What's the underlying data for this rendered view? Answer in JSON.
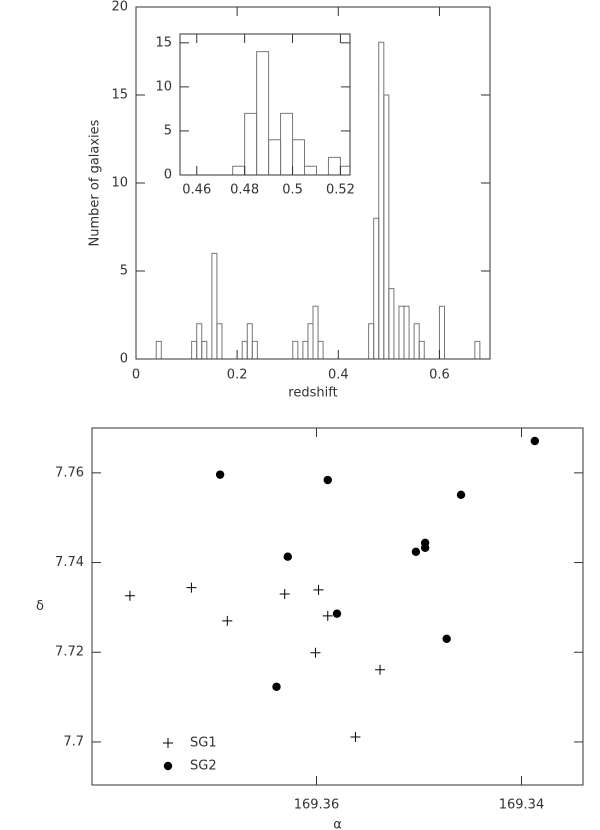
{
  "chart_data": [
    {
      "type": "histogram",
      "xlabel": "redshift",
      "ylabel": "Number of galaxies",
      "bins": [
        0,
        0.01,
        0.02,
        0.03,
        0.04,
        0.05,
        0.06,
        0.07,
        0.08,
        0.09,
        0.1,
        0.11,
        0.12,
        0.13,
        0.14,
        0.15,
        0.16,
        0.17,
        0.18,
        0.19,
        0.2,
        0.21,
        0.22,
        0.23,
        0.24,
        0.25,
        0.26,
        0.27,
        0.28,
        0.29,
        0.3,
        0.31,
        0.32,
        0.33,
        0.34,
        0.35,
        0.36,
        0.37,
        0.38,
        0.39,
        0.4,
        0.41,
        0.42,
        0.43,
        0.44,
        0.45,
        0.46,
        0.47,
        0.48,
        0.49,
        0.5,
        0.51,
        0.52,
        0.53,
        0.54,
        0.55,
        0.56,
        0.57,
        0.58,
        0.59,
        0.6,
        0.61,
        0.62,
        0.63,
        0.64,
        0.65,
        0.66,
        0.67,
        0.68,
        0.69,
        0.7
      ],
      "values": [
        0,
        0,
        0,
        0,
        1,
        0,
        0,
        0,
        0,
        0,
        0,
        1,
        2,
        1,
        0,
        6,
        2,
        0,
        0,
        0,
        0,
        1,
        2,
        1,
        0,
        0,
        0,
        0,
        0,
        0,
        0,
        1,
        0,
        1,
        2,
        3,
        1,
        0,
        0,
        0,
        0,
        0,
        0,
        0,
        0,
        0,
        2,
        8,
        18,
        15,
        4,
        0,
        3,
        3,
        0,
        2,
        1,
        0,
        0,
        0,
        3,
        0,
        0,
        0,
        0,
        0,
        0,
        1,
        0,
        0
      ],
      "color": "#777777",
      "xlim": [
        0,
        0.7
      ],
      "ylim": [
        0,
        20
      ],
      "xticks": [
        0,
        0.2,
        0.4,
        0.6
      ],
      "yticks": [
        0,
        5,
        10,
        15,
        20
      ]
    },
    {
      "type": "histogram",
      "bins": [
        0.455,
        0.46,
        0.465,
        0.47,
        0.475,
        0.48,
        0.485,
        0.49,
        0.495,
        0.5,
        0.505,
        0.51,
        0.515,
        0.52,
        0.525
      ],
      "values": [
        0,
        0,
        0,
        0,
        1,
        7,
        14,
        4,
        7,
        4,
        1,
        0,
        2,
        1
      ],
      "color": "#777777",
      "xlim": [
        0.453,
        0.524
      ],
      "ylim": [
        0,
        16
      ],
      "xticks": [
        0.46,
        0.48,
        0.5,
        0.52
      ],
      "yticks": [
        0,
        5,
        10,
        15
      ]
    },
    {
      "type": "scatter",
      "xlabel": "α",
      "ylabel": "δ",
      "xlim": [
        169.3819,
        169.334
      ],
      "ylim": [
        7.6904,
        7.77
      ],
      "xticks": [
        169.36,
        169.34
      ],
      "yticks": [
        7.7,
        7.72,
        7.74,
        7.76
      ],
      "legend": "lower left",
      "series": [
        {
          "name": "SG1",
          "marker": "plus",
          "color": "#000000",
          "x": [
            169.3782,
            169.3722,
            169.3687,
            169.3631,
            169.3598,
            169.3601,
            169.3589,
            169.3538,
            169.3562
          ],
          "values": [
            7.7326,
            7.7344,
            7.727,
            7.733,
            7.7339,
            7.7199,
            7.7281,
            7.7161,
            7.7011
          ]
        },
        {
          "name": "SG2",
          "marker": "circle",
          "color": "#000000",
          "x": [
            169.3694,
            169.3589,
            169.3628,
            169.358,
            169.3639,
            169.3503,
            169.3494,
            169.3494,
            169.3459,
            169.3473,
            169.3387
          ],
          "values": [
            7.7596,
            7.7584,
            7.7413,
            7.7286,
            7.7123,
            7.7424,
            7.7444,
            7.7433,
            7.7551,
            7.723,
            7.7671
          ]
        }
      ]
    }
  ]
}
